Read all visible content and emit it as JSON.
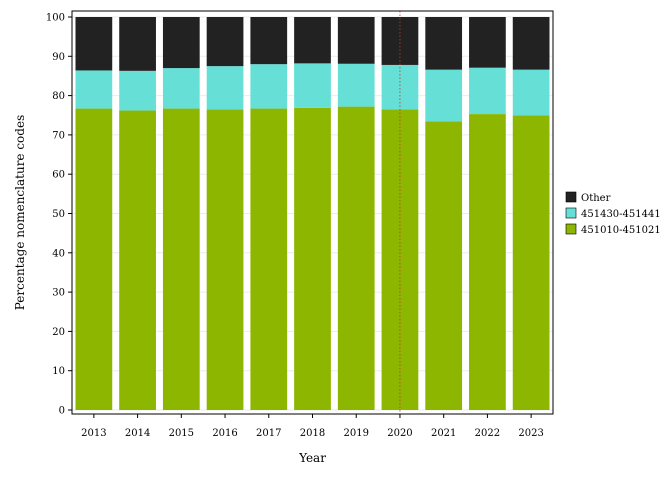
{
  "chart_data": {
    "type": "bar",
    "stacked": true,
    "title": "",
    "xlabel": "Year",
    "ylabel": "Percentage nomenclature codes",
    "ylim": [
      0,
      100
    ],
    "yticks": [
      0,
      10,
      20,
      30,
      40,
      50,
      60,
      70,
      80,
      90,
      100
    ],
    "grid": true,
    "legend_position": "right",
    "categories": [
      "2013",
      "2014",
      "2015",
      "2016",
      "2017",
      "2018",
      "2019",
      "2020",
      "2021",
      "2022",
      "2023"
    ],
    "series": [
      {
        "name": "451010-451021",
        "color": "#8db600",
        "values": [
          76.7,
          76.2,
          76.7,
          76.5,
          76.7,
          76.9,
          77.2,
          76.5,
          73.4,
          75.3,
          75.0
        ]
      },
      {
        "name": "451430-451441",
        "color": "#66e0d6",
        "values": [
          9.7,
          10.1,
          10.3,
          11.0,
          11.3,
          11.3,
          10.9,
          11.3,
          13.2,
          11.8,
          11.6
        ]
      },
      {
        "name": "Other",
        "color": "#222222",
        "values": [
          13.6,
          13.7,
          13.0,
          12.5,
          12.0,
          11.8,
          11.9,
          12.2,
          13.4,
          12.9,
          13.4
        ]
      }
    ],
    "legend_order": [
      "Other",
      "451430-451441",
      "451010-451021"
    ],
    "reference_line": {
      "x": "2020",
      "color": "#c0392b",
      "style": "dotted"
    }
  }
}
